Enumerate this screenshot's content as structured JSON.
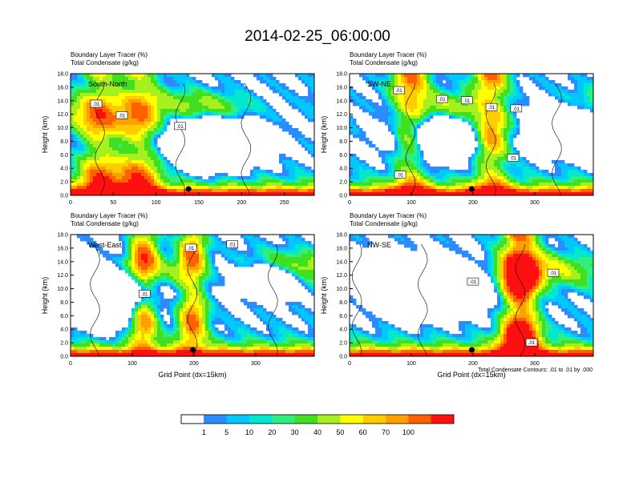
{
  "title": "2014-02-25_06:00:00",
  "contour_note": "Total Condensate Contours: .01 to .01 by .000",
  "colorbar": {
    "labels": [
      "1",
      "5",
      "10",
      "20",
      "30",
      "40",
      "50",
      "60",
      "70",
      "100"
    ],
    "colors": [
      "#ffffff",
      "#2a8cff",
      "#00c8ff",
      "#00e8d0",
      "#30ee80",
      "#40e020",
      "#a6f020",
      "#ffff00",
      "#ffcc00",
      "#ffa000",
      "#ff6000",
      "#ff1010"
    ]
  },
  "chart_data": [
    {
      "type": "heatmap",
      "subtitle1": "Boundary Layer Tracer   (%)",
      "subtitle2": "Total Condensate   (g/kg)",
      "section_label": "South-North",
      "ylabel": "Height (km)",
      "xlabel": "",
      "xlim": [
        0,
        285
      ],
      "ylim": [
        0,
        18
      ],
      "xticks": [
        "0",
        "50",
        "100",
        "150",
        "200",
        "250"
      ],
      "yticks": [
        "0.0",
        "2.0",
        "4.0",
        "6.0",
        "8.0",
        "10.0",
        "12.0",
        "14.0",
        "16.0",
        "18.0"
      ],
      "marker_x": 138,
      "contour_labels": [
        {
          "text": ".01",
          "x": 30,
          "y": 13.5
        },
        {
          "text": ".01",
          "x": 60,
          "y": 11.8
        },
        {
          "text": ".01",
          "x": 128,
          "y": 10.2
        }
      ]
    },
    {
      "type": "heatmap",
      "subtitle1": "Boundary Layer Tracer   (%)",
      "subtitle2": "Total Condensate   (g/kg)",
      "section_label": "SW-NE",
      "ylabel": "Height (km)",
      "xlabel": "",
      "xlim": [
        0,
        395
      ],
      "ylim": [
        0,
        18
      ],
      "xticks": [
        "0",
        "100",
        "200",
        "300"
      ],
      "yticks": [
        "0.0",
        "2.0",
        "4.0",
        "6.0",
        "8.0",
        "10.0",
        "12.0",
        "14.0",
        "16.0",
        "18.0"
      ],
      "marker_x": 198,
      "contour_labels": [
        {
          "text": ".01",
          "x": 80,
          "y": 15.5
        },
        {
          "text": ".01",
          "x": 150,
          "y": 14.2
        },
        {
          "text": ".01",
          "x": 190,
          "y": 14.0
        },
        {
          "text": ".01",
          "x": 230,
          "y": 13.0
        },
        {
          "text": ".01",
          "x": 270,
          "y": 12.8
        },
        {
          "text": ".01",
          "x": 265,
          "y": 5.5
        },
        {
          "text": ".01",
          "x": 82,
          "y": 3.0
        }
      ]
    },
    {
      "type": "heatmap",
      "subtitle1": "Boundary Layer Tracer   (%)",
      "subtitle2": "Total Condensate   (g/kg)",
      "section_label": "West-East",
      "ylabel": "Height (km)",
      "xlabel": "Grid Point (dx=15km)",
      "xlim": [
        0,
        395
      ],
      "ylim": [
        0,
        18
      ],
      "xticks": [
        "0",
        "100",
        "200",
        "300"
      ],
      "yticks": [
        "0.0",
        "2.0",
        "4.0",
        "6.0",
        "8.0",
        "10.0",
        "12.0",
        "14.0",
        "16.0",
        "18.0"
      ],
      "marker_x": 198,
      "contour_labels": [
        {
          "text": ".01",
          "x": 195,
          "y": 16.0
        },
        {
          "text": ".01",
          "x": 262,
          "y": 16.5
        },
        {
          "text": ".01",
          "x": 120,
          "y": 9.2
        }
      ]
    },
    {
      "type": "heatmap",
      "subtitle1": "Boundary Layer Tracer   (%)",
      "subtitle2": "Total Condensate   (g/kg)",
      "section_label": "NW-SE",
      "ylabel": "Height (km)",
      "xlabel": "Grid Point (dx=15km)",
      "xlim": [
        0,
        395
      ],
      "ylim": [
        0,
        18
      ],
      "xticks": [
        "0",
        "100",
        "200",
        "300"
      ],
      "yticks": [
        "0.0",
        "2.0",
        "4.0",
        "6.0",
        "8.0",
        "10.0",
        "12.0",
        "14.0",
        "16.0",
        "18.0"
      ],
      "marker_x": 198,
      "contour_labels": [
        {
          "text": ".01",
          "x": 200,
          "y": 11.0
        },
        {
          "text": ".01",
          "x": 330,
          "y": 12.3
        },
        {
          "text": ".01",
          "x": 295,
          "y": 2.0
        }
      ]
    }
  ]
}
